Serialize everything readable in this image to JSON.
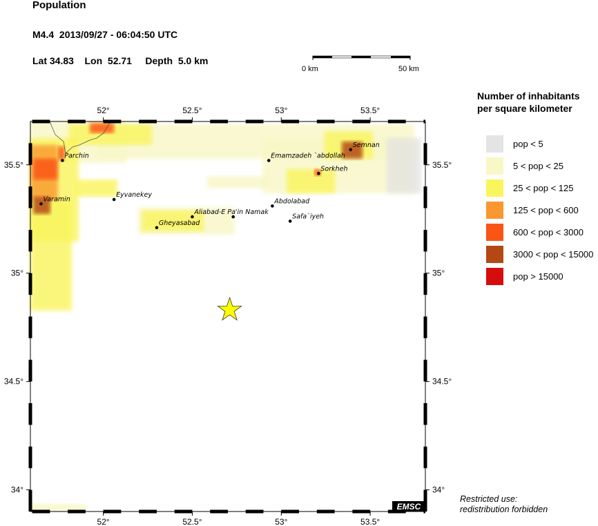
{
  "header": {
    "title": "Population",
    "event": "M4.4  2013/09/27 - 06:04:50 UTC",
    "location": "Lat 34.83    Lon  52.71     Depth  5.0 km"
  },
  "scale_bar": {
    "start_label": "0 km",
    "end_label": "50 km"
  },
  "legend": {
    "title_line1": "Number of inhabitants",
    "title_line2": "per square kilometer",
    "items": [
      {
        "label": "pop < 5",
        "color": "#e4e4e2"
      },
      {
        "label": "5 < pop < 25",
        "color": "#f8f7c6"
      },
      {
        "label": "25 < pop < 125",
        "color": "#f9f55c"
      },
      {
        "label": "125 < pop < 600",
        "color": "#f9982f"
      },
      {
        "label": "600 < pop < 3000",
        "color": "#fb5515"
      },
      {
        "label": "3000 < pop < 15000",
        "color": "#b44815"
      },
      {
        "label": "pop > 15000",
        "color": "#d60d0d"
      }
    ]
  },
  "map": {
    "lon_range": [
      51.59,
      53.81
    ],
    "lat_range": [
      33.9,
      35.7
    ],
    "lon_ticks": [
      {
        "v": 52,
        "label": "52°"
      },
      {
        "v": 52.5,
        "label": "52.5°"
      },
      {
        "v": 53,
        "label": "53°"
      },
      {
        "v": 53.5,
        "label": "53.5°"
      }
    ],
    "lat_ticks": [
      {
        "v": 35.5,
        "label": "35.5°"
      },
      {
        "v": 35,
        "label": "35°"
      },
      {
        "v": 34.5,
        "label": "34.5°"
      },
      {
        "v": 34,
        "label": "34°"
      }
    ],
    "epicenter": {
      "lon": 52.71,
      "lat": 34.83,
      "color": "#ffff00"
    },
    "cities": [
      {
        "name": "Parchin",
        "lon": 51.77,
        "lat": 35.52
      },
      {
        "name": "Varamin",
        "lon": 51.65,
        "lat": 35.32
      },
      {
        "name": "Eyvanekey",
        "lon": 52.06,
        "lat": 35.34
      },
      {
        "name": "Gheyasabad",
        "lon": 52.3,
        "lat": 35.21
      },
      {
        "name": "Aliabad-E Pa'in Namak",
        "lon": 52.5,
        "lat": 35.26
      },
      {
        "name": "",
        "lon": 52.73,
        "lat": 35.26
      },
      {
        "name": "Emamzadeh `abdollah",
        "lon": 52.93,
        "lat": 35.52
      },
      {
        "name": "Abdolabad",
        "lon": 52.95,
        "lat": 35.31
      },
      {
        "name": "Safa`iyeh",
        "lon": 53.05,
        "lat": 35.24
      },
      {
        "name": "Sorkheh",
        "lon": 53.21,
        "lat": 35.46
      },
      {
        "name": "Semnan",
        "lon": 53.39,
        "lat": 35.57
      }
    ],
    "logo": "EMSC"
  },
  "footer": {
    "restricted_line1": "Restricted use:",
    "restricted_line2": "redistribution forbidden"
  }
}
